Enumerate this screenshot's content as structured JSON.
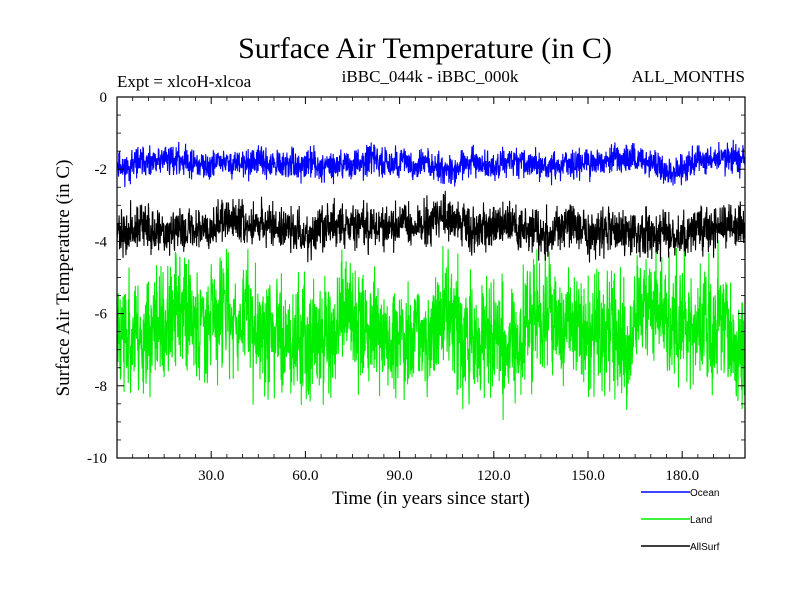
{
  "chart_data": {
    "type": "line",
    "title": "Surface Air Temperature (in C)",
    "subtitle_left": "Expt = xlcoH-xlcoa",
    "subtitle_center": "iBBC_044k - iBBC_000k",
    "subtitle_right": "ALL_MONTHS",
    "xlabel": "Time (in years since start)",
    "ylabel": "Surface Air Temperature (in C)",
    "xlim": [
      0,
      200
    ],
    "ylim": [
      -10,
      0
    ],
    "x_ticks": [
      30,
      60,
      90,
      120,
      150,
      180
    ],
    "x_tick_labels": [
      "30.0",
      "60.0",
      "90.0",
      "120.0",
      "150.0",
      "180.0"
    ],
    "y_ticks": [
      0,
      -2,
      -4,
      -6,
      -8,
      -10
    ],
    "y_tick_labels": [
      "0",
      "-2",
      "-4",
      "-6",
      "-8",
      "-10"
    ],
    "n_points": 2400,
    "series": [
      {
        "name": "Ocean",
        "color": "#0000ff",
        "mean": -1.85,
        "spread": 0.28,
        "min": -2.8,
        "max": -1.1,
        "seed": 11
      },
      {
        "name": "Land",
        "color": "#00ee00",
        "mean": -6.3,
        "spread": 1.1,
        "min": -9.0,
        "max": -3.2,
        "seed": 23
      },
      {
        "name": "AllSurf",
        "color": "#000000",
        "mean": -3.6,
        "spread": 0.42,
        "min": -4.6,
        "max": -2.5,
        "seed": 37
      }
    ]
  }
}
